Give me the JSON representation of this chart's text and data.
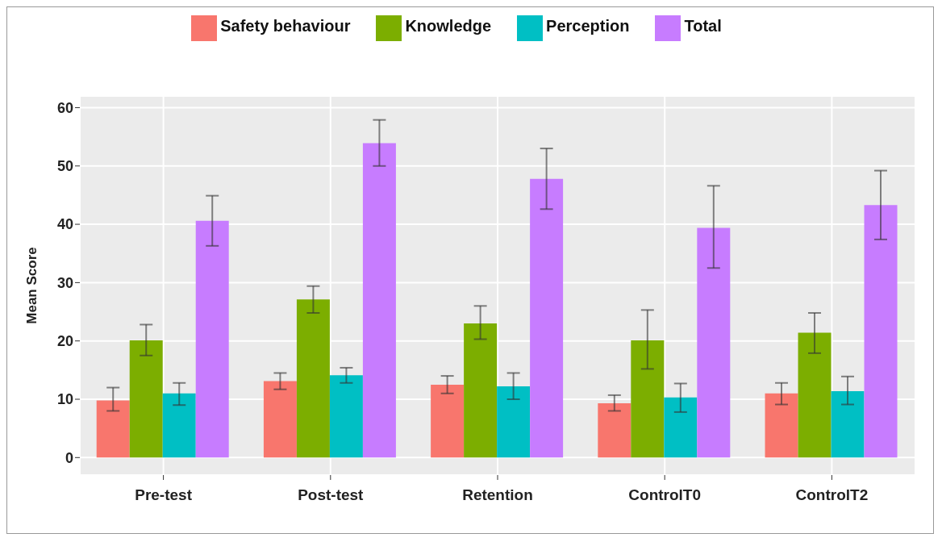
{
  "chart_data": {
    "type": "bar",
    "ylabel": "Mean Score",
    "categories": [
      "Pre-test",
      "Post-test",
      "Retention",
      "ControlT0",
      "ControlT2"
    ],
    "series": [
      {
        "name": "Safety behaviour",
        "color": "#f8766d",
        "values": [
          9.8,
          13.1,
          12.5,
          9.3,
          11.0
        ],
        "errors": [
          [
            8.0,
            12.0
          ],
          [
            11.7,
            14.5
          ],
          [
            11.0,
            14.0
          ],
          [
            8.0,
            10.7
          ],
          [
            9.1,
            12.8
          ]
        ]
      },
      {
        "name": "Knowledge",
        "color": "#7cae00",
        "values": [
          20.1,
          27.1,
          23.0,
          20.1,
          21.4
        ],
        "errors": [
          [
            17.5,
            22.8
          ],
          [
            24.8,
            29.4
          ],
          [
            20.3,
            26.0
          ],
          [
            15.2,
            25.3
          ],
          [
            17.9,
            24.8
          ]
        ]
      },
      {
        "name": "Perception",
        "color": "#00bfc4",
        "values": [
          11.0,
          14.1,
          12.2,
          10.3,
          11.4
        ],
        "errors": [
          [
            9.0,
            12.8
          ],
          [
            12.8,
            15.4
          ],
          [
            10.0,
            14.5
          ],
          [
            7.8,
            12.7
          ],
          [
            9.1,
            13.9
          ]
        ]
      },
      {
        "name": "Total",
        "color": "#c77cff",
        "values": [
          40.6,
          53.9,
          47.8,
          39.4,
          43.3
        ],
        "errors": [
          [
            36.3,
            44.9
          ],
          [
            50.0,
            57.9
          ],
          [
            42.6,
            53.0
          ],
          [
            32.5,
            46.6
          ],
          [
            37.4,
            49.2
          ]
        ]
      }
    ],
    "ylim": [
      -3,
      62
    ],
    "yticks": [
      0,
      10,
      20,
      30,
      40,
      50,
      60
    ],
    "grid": true,
    "legend": "top"
  }
}
